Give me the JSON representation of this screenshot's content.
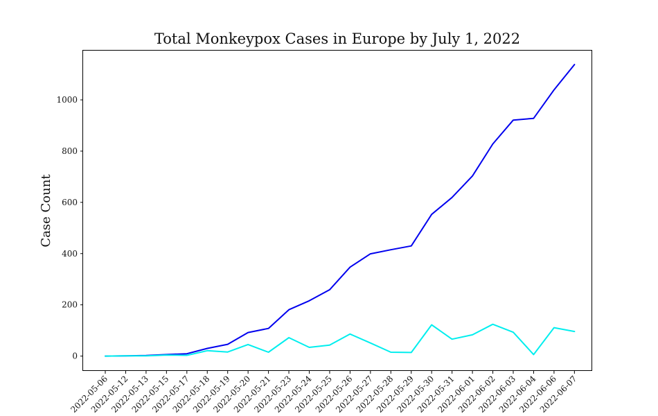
{
  "chart_data": {
    "type": "line",
    "title": "Total Monkeypox Cases in Europe by July 1, 2022",
    "xlabel": "",
    "ylabel": "Case Count",
    "categories": [
      "2022-05-06",
      "2022-05-12",
      "2022-05-13",
      "2022-05-15",
      "2022-05-17",
      "2022-05-18",
      "2022-05-19",
      "2022-05-20",
      "2022-05-21",
      "2022-05-23",
      "2022-05-24",
      "2022-05-25",
      "2022-05-26",
      "2022-05-27",
      "2022-05-28",
      "2022-05-29",
      "2022-05-30",
      "2022-05-31",
      "2022-06-01",
      "2022-06-02",
      "2022-06-03",
      "2022-06-04",
      "2022-06-06",
      "2022-06-07"
    ],
    "ylim": [
      -58,
      1195
    ],
    "yticks": [
      0,
      200,
      400,
      600,
      800,
      1000
    ],
    "grid": false,
    "series": [
      {
        "color": "#0000ee",
        "values": [
          0,
          1,
          2,
          6,
          9,
          30,
          46,
          92,
          108,
          181,
          216,
          259,
          347,
          399,
          415,
          430,
          553,
          619,
          703,
          828,
          921,
          928,
          1039,
          1138
        ]
      },
      {
        "color": "#00eeee",
        "values": [
          0,
          1,
          1,
          4,
          3,
          21,
          16,
          45,
          15,
          72,
          34,
          43,
          86,
          51,
          15,
          14,
          122,
          66,
          83,
          124,
          93,
          6,
          111,
          96
        ]
      }
    ]
  }
}
